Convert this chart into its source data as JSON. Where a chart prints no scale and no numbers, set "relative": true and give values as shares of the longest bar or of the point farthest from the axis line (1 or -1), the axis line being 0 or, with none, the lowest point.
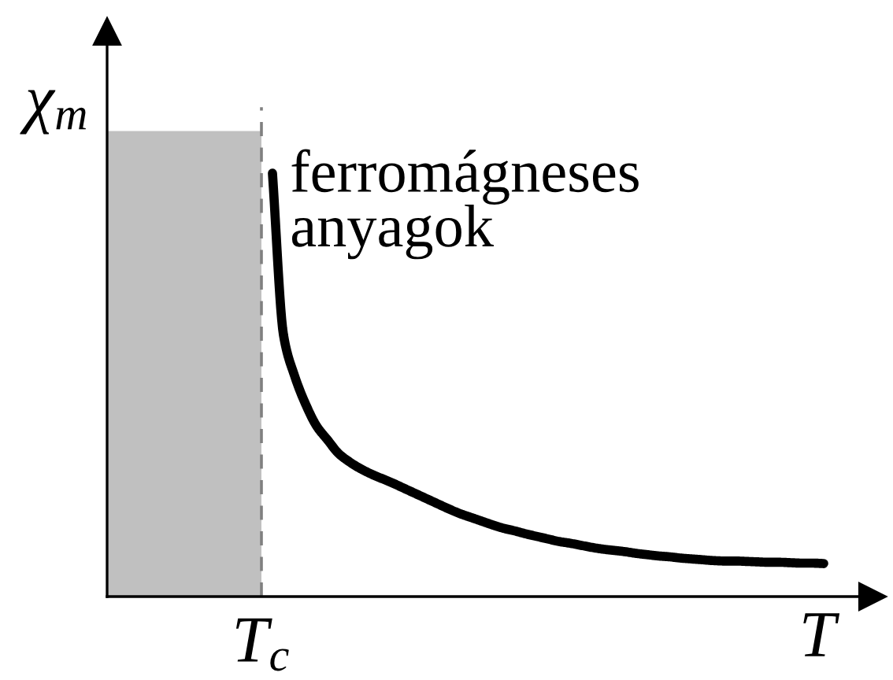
{
  "chart_data": {
    "type": "line",
    "xlabel": "T",
    "ylabel": "χ$_{m}$",
    "relative": true,
    "categories": [
      null,
      null,
      null,
      null,
      null,
      null,
      null,
      null,
      null,
      null,
      null,
      null,
      null,
      null,
      null,
      null,
      null,
      null,
      null,
      null,
      null,
      null,
      null,
      null,
      null,
      null,
      null,
      null,
      null,
      null,
      null,
      null,
      null,
      null,
      null,
      null,
      null,
      null,
      null,
      null,
      null,
      null,
      null,
      null,
      null,
      null,
      null,
      null,
      null,
      null,
      null
    ],
    "series": [
      {
        "name": "ferromágneses\nanyagok",
        "color": "#000000",
        "values": [
          1,
          0.618,
          0.522,
          0.455,
          0.403,
          0.37,
          0.338,
          0.318,
          0.302,
          0.289,
          0.278,
          0.267,
          0.255,
          0.243,
          0.231,
          0.219,
          0.207,
          0.196,
          0.187,
          0.178,
          0.169,
          0.161,
          0.155,
          0.148,
          0.142,
          0.136,
          0.13,
          0.126,
          0.121,
          0.116,
          0.112,
          0.109,
          0.106,
          0.102,
          0.099,
          0.096,
          0.094,
          0.091,
          0.089,
          0.087,
          0.085,
          0.084,
          0.084,
          0.083,
          0.082,
          0.081,
          0.081,
          0.08,
          0.079,
          0.079,
          0.078
        ]
      }
    ],
    "annotations": [
      "T$_{c}$"
    ]
  }
}
